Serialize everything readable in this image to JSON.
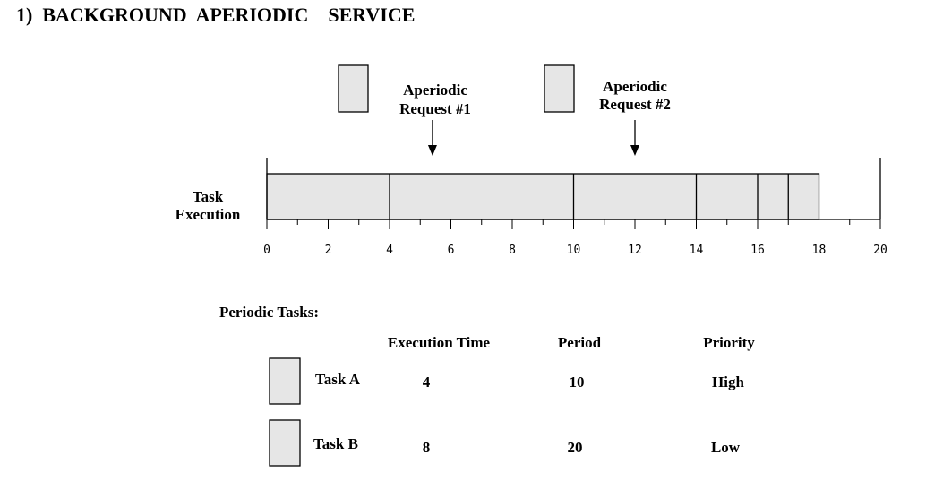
{
  "title": "1)  BACKGROUND  APERIODIC    SERVICE",
  "colors": {
    "fill": "#e6e6e6",
    "stroke": "#000000"
  },
  "requests": [
    {
      "line1": "Aperiodic",
      "line2": "Request #1",
      "arrival_time": 5.4
    },
    {
      "line1": "Aperiodic",
      "line2": "Request #2",
      "arrival_time": 12
    }
  ],
  "timeline": {
    "label_line1": "Task",
    "label_line2": "Execution",
    "axis_min": 0,
    "axis_max": 20,
    "tick_labels": [
      "0",
      "2",
      "4",
      "6",
      "8",
      "10",
      "12",
      "14",
      "16",
      "18",
      "20"
    ],
    "busy_start": 0,
    "busy_end": 18,
    "segment_boundaries": [
      4,
      10,
      14,
      16,
      17
    ]
  },
  "periodic": {
    "heading": "Periodic Tasks:",
    "headers": {
      "exec": "Execution Time",
      "period": "Period",
      "priority": "Priority"
    },
    "tasks": [
      {
        "name": "Task A",
        "exec": "4",
        "period": "10",
        "priority": "High"
      },
      {
        "name": "Task B",
        "exec": "8",
        "period": "20",
        "priority": "Low"
      }
    ]
  }
}
